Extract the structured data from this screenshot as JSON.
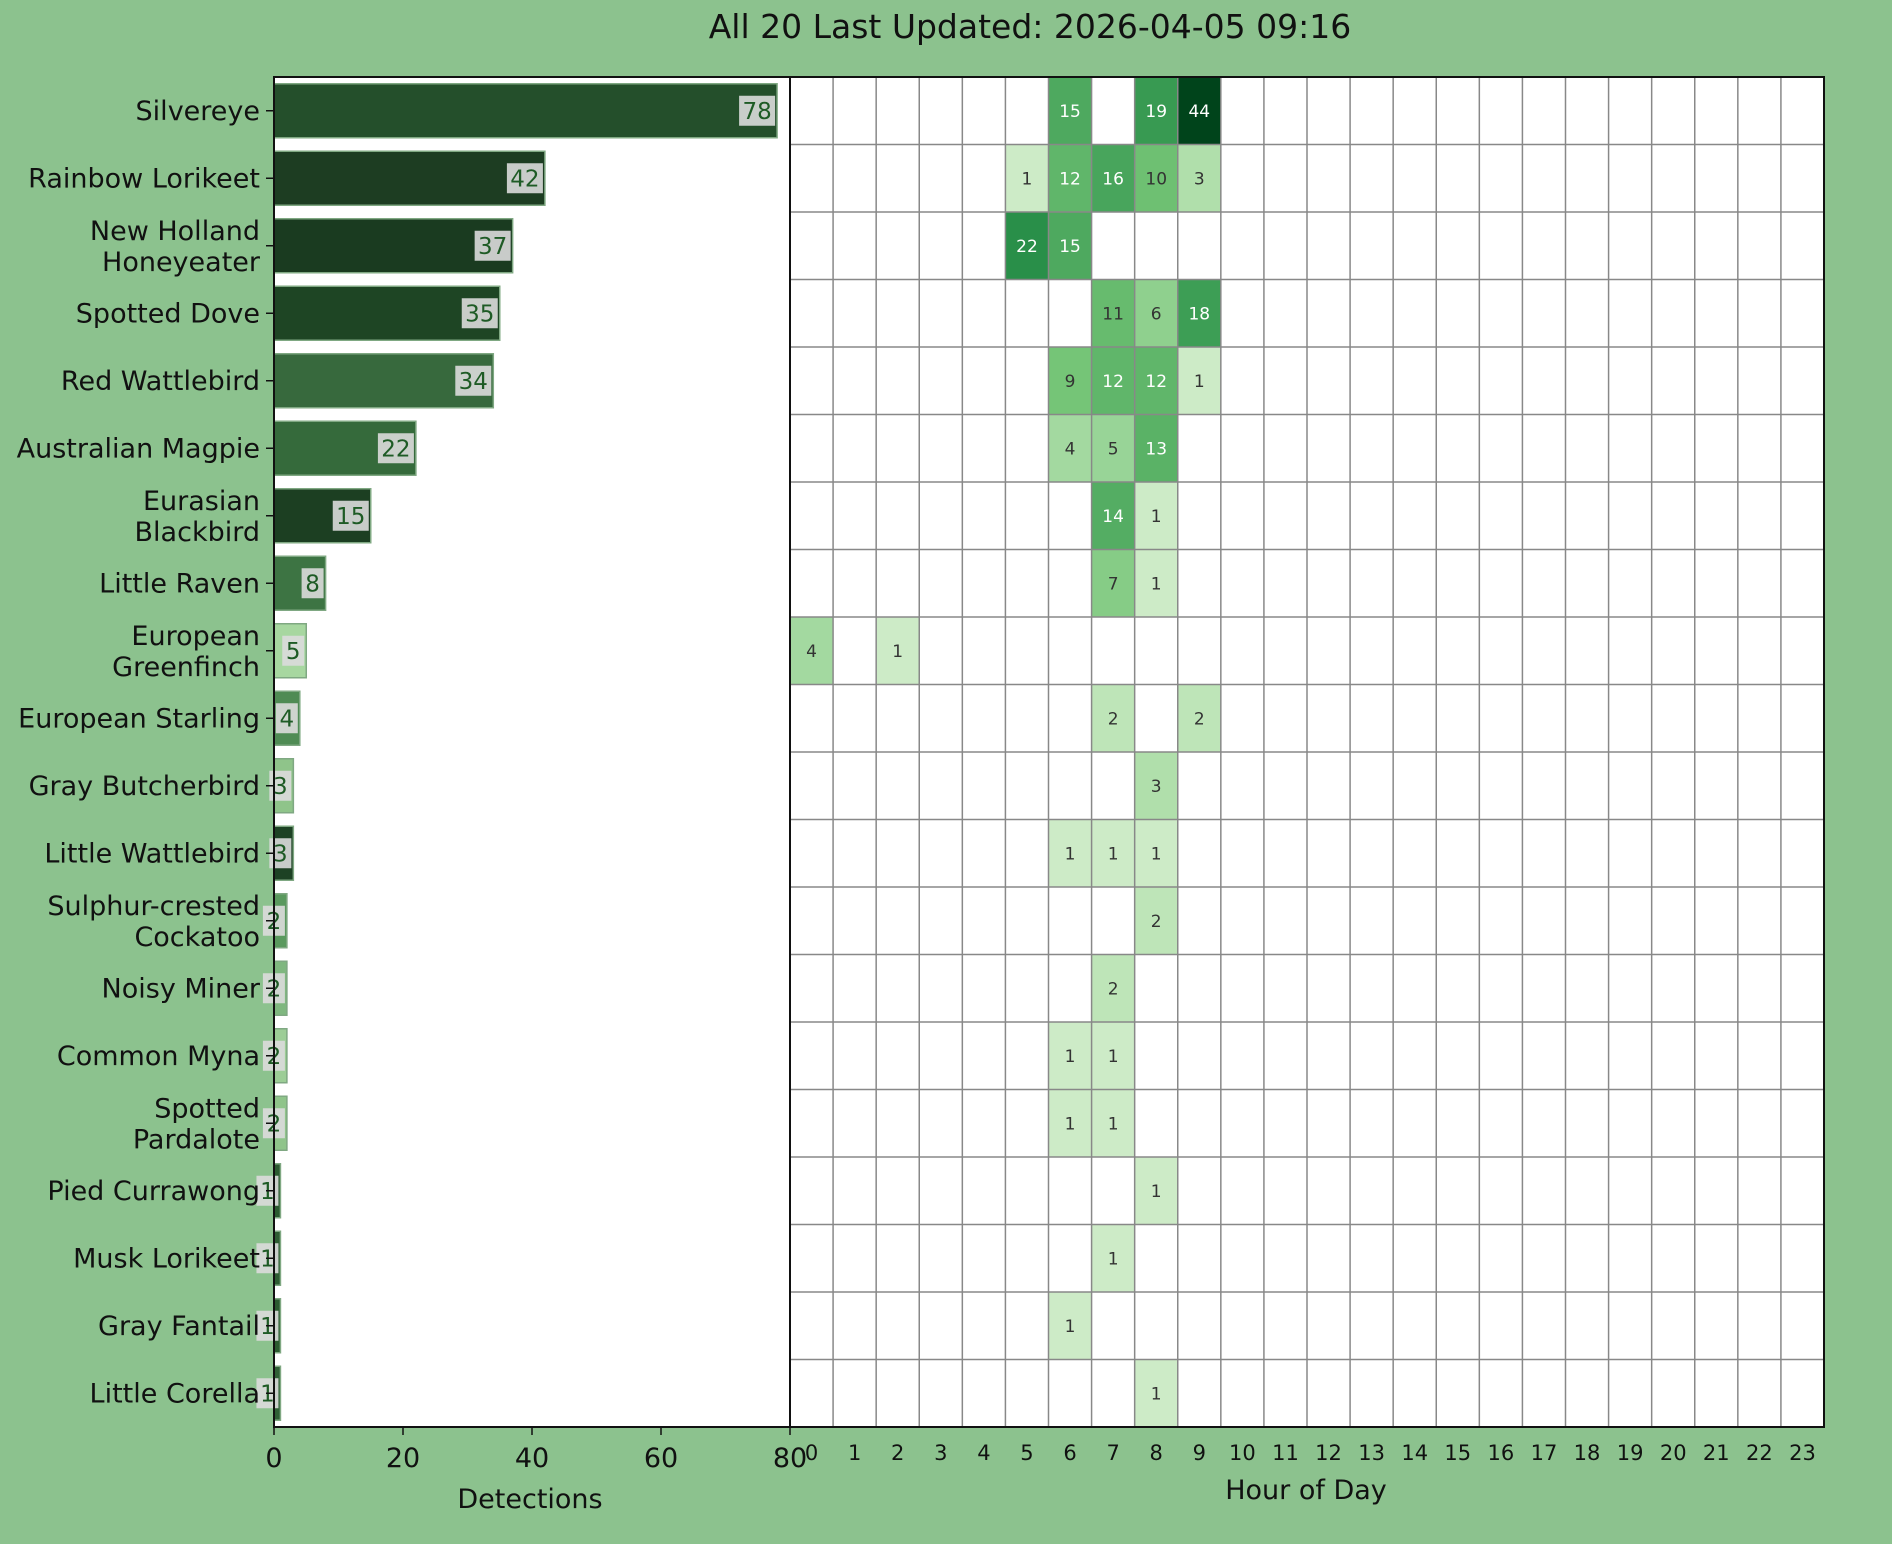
{
  "chart_data": [
    {
      "type": "bar",
      "orientation": "horizontal",
      "title": "All 20 Last Updated: 2026-04-05 09:16",
      "xlabel": "Detections",
      "xlim": [
        0,
        80
      ],
      "xticks": [
        0,
        20,
        40,
        60,
        80
      ],
      "categories": [
        "Silvereye",
        "Rainbow Lorikeet",
        "New Holland Honeyeater",
        "Spotted Dove",
        "Red Wattlebird",
        "Australian Magpie",
        "Eurasian Blackbird",
        "Little Raven",
        "European Greenfinch",
        "European Starling",
        "Gray Butcherbird",
        "Little Wattlebird",
        "Sulphur-crested Cockatoo",
        "Noisy Miner",
        "Common Myna",
        "Spotted Pardalote",
        "Pied Currawong",
        "Musk Lorikeet",
        "Gray Fantail",
        "Little Corella"
      ],
      "category_lines": [
        [
          "Silvereye"
        ],
        [
          "Rainbow Lorikeet"
        ],
        [
          "New Holland",
          "Honeyeater"
        ],
        [
          "Spotted Dove"
        ],
        [
          "Red Wattlebird"
        ],
        [
          "Australian Magpie"
        ],
        [
          "Eurasian",
          "Blackbird"
        ],
        [
          "Little Raven"
        ],
        [
          "European",
          "Greenfinch"
        ],
        [
          "European Starling"
        ],
        [
          "Gray Butcherbird"
        ],
        [
          "Little Wattlebird"
        ],
        [
          "Sulphur-crested",
          "Cockatoo"
        ],
        [
          "Noisy Miner"
        ],
        [
          "Common Myna"
        ],
        [
          "Spotted",
          "Pardalote"
        ],
        [
          "Pied Currawong"
        ],
        [
          "Musk Lorikeet"
        ],
        [
          "Gray Fantail"
        ],
        [
          "Little Corella"
        ]
      ],
      "values": [
        78,
        42,
        37,
        35,
        34,
        22,
        15,
        8,
        5,
        4,
        3,
        3,
        2,
        2,
        2,
        2,
        1,
        1,
        1,
        1
      ],
      "bar_colors": [
        "#244f2b",
        "#1d3d22",
        "#1a3b20",
        "#1e4524",
        "#37693d",
        "#356a3b",
        "#1c3f22",
        "#3d7443",
        "#a7d7a0",
        "#4f8b54",
        "#8fc48a",
        "#1d4224",
        "#5a995e",
        "#7fb77f",
        "#9ccd96",
        "#8fc48a",
        "#2b5b30",
        "#2e5d33",
        "#2b5b30",
        "#2f6035"
      ]
    },
    {
      "type": "heatmap",
      "xlabel": "Hour of Day",
      "x": [
        0,
        1,
        2,
        3,
        4,
        5,
        6,
        7,
        8,
        9,
        10,
        11,
        12,
        13,
        14,
        15,
        16,
        17,
        18,
        19,
        20,
        21,
        22,
        23
      ],
      "highlight_hour": 9,
      "highlight_color": "#f0f07a",
      "rows": [
        [
          0,
          0,
          0,
          0,
          0,
          0,
          15,
          0,
          19,
          44,
          0,
          0,
          0,
          0,
          0,
          0,
          0,
          0,
          0,
          0,
          0,
          0,
          0,
          0
        ],
        [
          0,
          0,
          0,
          0,
          0,
          1,
          12,
          16,
          10,
          3,
          0,
          0,
          0,
          0,
          0,
          0,
          0,
          0,
          0,
          0,
          0,
          0,
          0,
          0
        ],
        [
          0,
          0,
          0,
          0,
          0,
          22,
          15,
          0,
          0,
          0,
          0,
          0,
          0,
          0,
          0,
          0,
          0,
          0,
          0,
          0,
          0,
          0,
          0,
          0
        ],
        [
          0,
          0,
          0,
          0,
          0,
          0,
          0,
          11,
          6,
          18,
          0,
          0,
          0,
          0,
          0,
          0,
          0,
          0,
          0,
          0,
          0,
          0,
          0,
          0
        ],
        [
          0,
          0,
          0,
          0,
          0,
          0,
          9,
          12,
          12,
          1,
          0,
          0,
          0,
          0,
          0,
          0,
          0,
          0,
          0,
          0,
          0,
          0,
          0,
          0
        ],
        [
          0,
          0,
          0,
          0,
          0,
          0,
          4,
          5,
          13,
          0,
          0,
          0,
          0,
          0,
          0,
          0,
          0,
          0,
          0,
          0,
          0,
          0,
          0,
          0
        ],
        [
          0,
          0,
          0,
          0,
          0,
          0,
          0,
          14,
          1,
          0,
          0,
          0,
          0,
          0,
          0,
          0,
          0,
          0,
          0,
          0,
          0,
          0,
          0,
          0
        ],
        [
          0,
          0,
          0,
          0,
          0,
          0,
          0,
          7,
          1,
          0,
          0,
          0,
          0,
          0,
          0,
          0,
          0,
          0,
          0,
          0,
          0,
          0,
          0,
          0
        ],
        [
          4,
          0,
          1,
          0,
          0,
          0,
          0,
          0,
          0,
          0,
          0,
          0,
          0,
          0,
          0,
          0,
          0,
          0,
          0,
          0,
          0,
          0,
          0,
          0
        ],
        [
          0,
          0,
          0,
          0,
          0,
          0,
          0,
          2,
          0,
          2,
          0,
          0,
          0,
          0,
          0,
          0,
          0,
          0,
          0,
          0,
          0,
          0,
          0,
          0
        ],
        [
          0,
          0,
          0,
          0,
          0,
          0,
          0,
          0,
          3,
          0,
          0,
          0,
          0,
          0,
          0,
          0,
          0,
          0,
          0,
          0,
          0,
          0,
          0,
          0
        ],
        [
          0,
          0,
          0,
          0,
          0,
          0,
          1,
          1,
          1,
          0,
          0,
          0,
          0,
          0,
          0,
          0,
          0,
          0,
          0,
          0,
          0,
          0,
          0,
          0
        ],
        [
          0,
          0,
          0,
          0,
          0,
          0,
          0,
          0,
          2,
          0,
          0,
          0,
          0,
          0,
          0,
          0,
          0,
          0,
          0,
          0,
          0,
          0,
          0,
          0
        ],
        [
          0,
          0,
          0,
          0,
          0,
          0,
          0,
          2,
          0,
          0,
          0,
          0,
          0,
          0,
          0,
          0,
          0,
          0,
          0,
          0,
          0,
          0,
          0,
          0
        ],
        [
          0,
          0,
          0,
          0,
          0,
          0,
          1,
          1,
          0,
          0,
          0,
          0,
          0,
          0,
          0,
          0,
          0,
          0,
          0,
          0,
          0,
          0,
          0,
          0
        ],
        [
          0,
          0,
          0,
          0,
          0,
          0,
          1,
          1,
          0,
          0,
          0,
          0,
          0,
          0,
          0,
          0,
          0,
          0,
          0,
          0,
          0,
          0,
          0,
          0
        ],
        [
          0,
          0,
          0,
          0,
          0,
          0,
          0,
          0,
          1,
          0,
          0,
          0,
          0,
          0,
          0,
          0,
          0,
          0,
          0,
          0,
          0,
          0,
          0,
          0
        ],
        [
          0,
          0,
          0,
          0,
          0,
          0,
          0,
          1,
          0,
          0,
          0,
          0,
          0,
          0,
          0,
          0,
          0,
          0,
          0,
          0,
          0,
          0,
          0,
          0
        ],
        [
          0,
          0,
          0,
          0,
          0,
          0,
          1,
          0,
          0,
          0,
          0,
          0,
          0,
          0,
          0,
          0,
          0,
          0,
          0,
          0,
          0,
          0,
          0,
          0
        ],
        [
          0,
          0,
          0,
          0,
          0,
          0,
          0,
          0,
          1,
          0,
          0,
          0,
          0,
          0,
          0,
          0,
          0,
          0,
          0,
          0,
          0,
          0,
          0,
          0
        ]
      ]
    }
  ],
  "colors": {
    "background": "#8cc28e",
    "plot_background": "#ffffff",
    "grid": "#888888",
    "bar_label_box": "#dcdcdc",
    "bar_label_text": "#1e5b25"
  }
}
